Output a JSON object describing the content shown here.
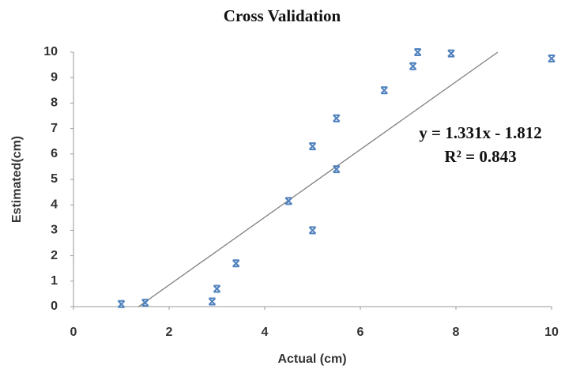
{
  "chart_data": {
    "type": "scatter",
    "title": "Cross Validation",
    "x_label": "Actual (cm)",
    "y_label": "Estimated(cm)",
    "x": [
      1.0,
      1.5,
      2.9,
      3.0,
      3.4,
      4.5,
      5.0,
      5.0,
      5.5,
      5.5,
      6.5,
      7.1,
      7.2,
      7.9,
      10.0
    ],
    "values": [
      0.1,
      0.15,
      0.2,
      0.7,
      1.7,
      4.15,
      3.0,
      6.3,
      5.4,
      7.4,
      8.5,
      9.45,
      10.0,
      9.95,
      9.75
    ],
    "color": "#4f81bd",
    "xlim": [
      0,
      10
    ],
    "xticks": [
      0,
      2,
      4,
      6,
      8,
      10
    ],
    "ylim": [
      0,
      10
    ],
    "yticks": [
      0,
      1,
      2,
      3,
      4,
      5,
      6,
      7,
      8,
      9,
      10
    ],
    "grid": false,
    "trendline": {
      "slope": 1.331,
      "intercept": -1.812,
      "color": "#808080",
      "equation": "y = 1.331x - 1.812",
      "r2": "R² = 0.843"
    }
  }
}
